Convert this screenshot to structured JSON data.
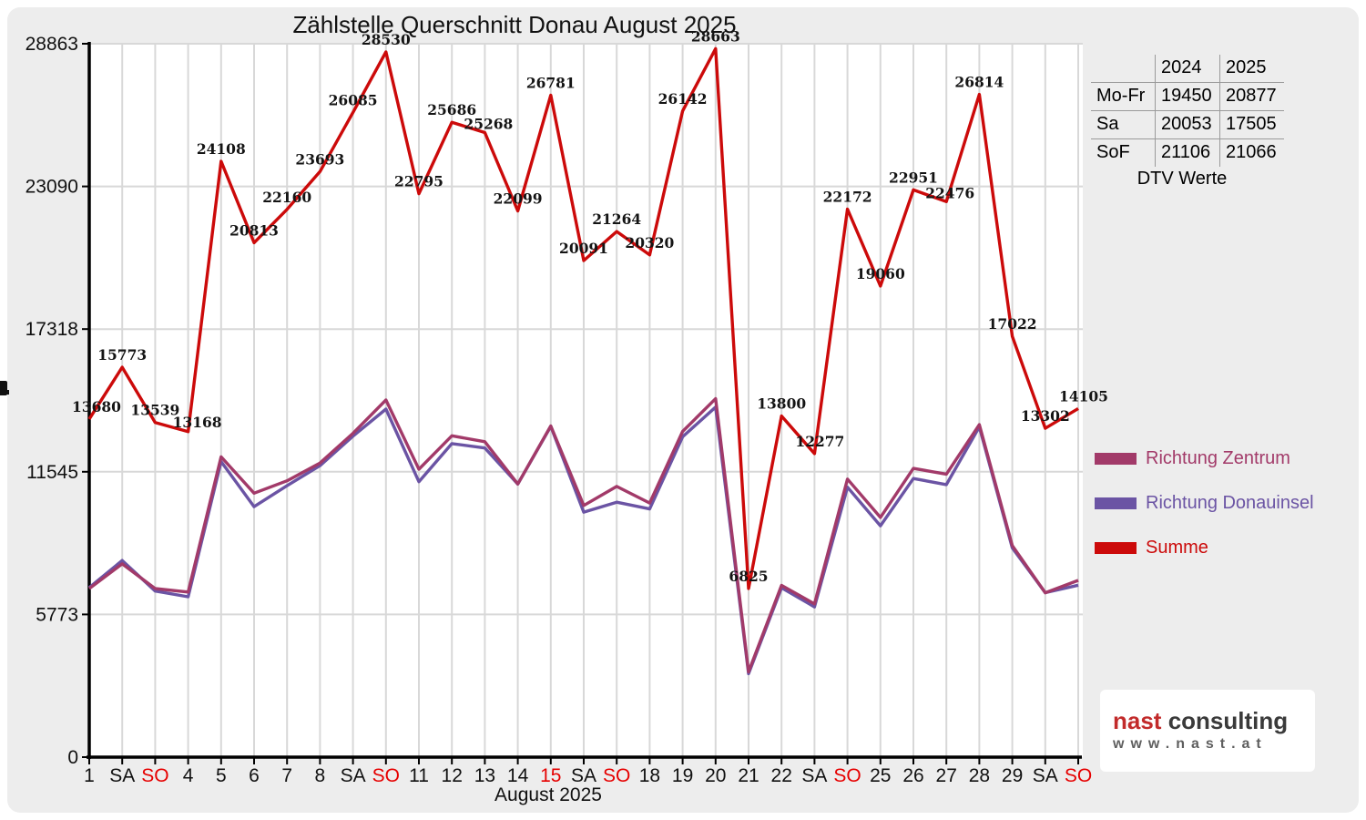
{
  "title": "Zählstelle Querschnitt Donau August 2025",
  "x_axis": {
    "label": "August 2025",
    "day_labels": [
      "1",
      "SA",
      "SO",
      "4",
      "5",
      "6",
      "7",
      "8",
      "SA",
      "SO",
      "11",
      "12",
      "13",
      "14",
      "15",
      "SA",
      "SO",
      "18",
      "19",
      "20",
      "21",
      "22",
      "SA",
      "SO",
      "25",
      "26",
      "27",
      "28",
      "29",
      "SA",
      "SO"
    ],
    "holiday_indices": [
      2,
      9,
      14,
      16,
      23,
      30
    ],
    "holiday_color": "#e60000"
  },
  "y_axis": {
    "ticks": [
      0,
      5773,
      11545,
      17318,
      23090,
      28863
    ]
  },
  "chart_data": {
    "type": "line",
    "title": "Zählstelle Querschnitt Donau August 2025",
    "xlabel": "August 2025",
    "ylabel": "",
    "ylim": [
      0,
      28863
    ],
    "y_ticks": [
      0,
      5773,
      11545,
      17318,
      23090,
      28863
    ],
    "grid": true,
    "legend_position": "right",
    "categories": [
      "1",
      "SA",
      "SO",
      "4",
      "5",
      "6",
      "7",
      "8",
      "SA",
      "SO",
      "11",
      "12",
      "13",
      "14",
      "15",
      "SA",
      "SO",
      "18",
      "19",
      "20",
      "21",
      "22",
      "SA",
      "SO",
      "25",
      "26",
      "27",
      "28",
      "29",
      "SA",
      "SO"
    ],
    "series": [
      {
        "name": "Richtung Zentrum",
        "color": "#a23a69",
        "labeled": false,
        "values_estimated": true,
        "values": [
          6820,
          7820,
          6820,
          6680,
          12150,
          10680,
          11180,
          11900,
          13100,
          14450,
          11650,
          13000,
          12760,
          11050,
          13400,
          10180,
          10950,
          10280,
          13180,
          14500,
          3450,
          6950,
          6200,
          11250,
          9700,
          11680,
          11450,
          13450,
          8560,
          6650,
          7150
        ]
      },
      {
        "name": "Richtung Donauinsel",
        "color": "#6b54a4",
        "labeled": false,
        "values_estimated": true,
        "values": [
          6860,
          7953,
          6719,
          6488,
          11958,
          10133,
          10980,
          11793,
          12985,
          14080,
          11145,
          12686,
          12508,
          11049,
          13381,
          9911,
          10314,
          10040,
          12962,
          14163,
          3375,
          6850,
          6077,
          10922,
          9360,
          11271,
          11026,
          13364,
          8462,
          6652,
          6955
        ]
      },
      {
        "name": "Summe",
        "color": "#cc0a0a",
        "labeled": true,
        "values_estimated": false,
        "values": [
          13680,
          15773,
          13539,
          13168,
          24108,
          20813,
          22160,
          23693,
          26085,
          28530,
          22795,
          25686,
          25268,
          22099,
          26781,
          20091,
          21264,
          20320,
          26142,
          28663,
          6825,
          13800,
          12277,
          22172,
          19060,
          22951,
          22476,
          26814,
          17022,
          13302,
          14105
        ]
      }
    ]
  },
  "side_table": {
    "col_headers": [
      "2024",
      "2025"
    ],
    "rows": [
      {
        "label": "Mo-Fr",
        "values": [
          "19450",
          "20877"
        ]
      },
      {
        "label": "Sa",
        "values": [
          "20053",
          "17505"
        ]
      },
      {
        "label": "SoF",
        "values": [
          "21106",
          "21066"
        ]
      }
    ],
    "caption": "DTV Werte"
  },
  "legend": {
    "items": [
      {
        "label": "Richtung Zentrum",
        "color": "#a23a69"
      },
      {
        "label": "Richtung Donauinsel",
        "color": "#6b54a4"
      },
      {
        "label": "Summe",
        "color": "#cc0a0a"
      }
    ]
  },
  "logo": {
    "name_part": "nast",
    "name_color": "#c22b2b",
    "suffix_part": " consulting",
    "suffix_color": "#3a3a3a",
    "url_text": "www.nast.at"
  }
}
